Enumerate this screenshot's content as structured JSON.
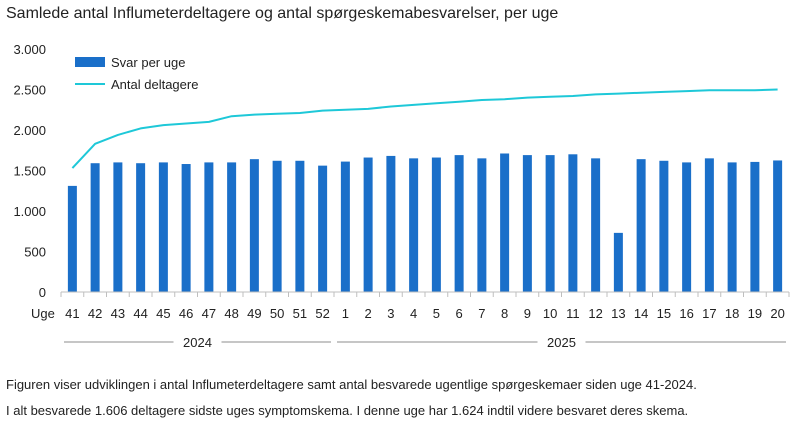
{
  "chart_data": {
    "type": "bar+line",
    "title": "Samlede antal Influmeterdeltagere og antal spørgeskemabesvarelser, per uge",
    "x_axis_label": "Uge",
    "categories": [
      "41",
      "42",
      "43",
      "44",
      "45",
      "46",
      "47",
      "48",
      "49",
      "50",
      "51",
      "52",
      "1",
      "2",
      "3",
      "4",
      "5",
      "6",
      "7",
      "8",
      "9",
      "10",
      "11",
      "12",
      "13",
      "14",
      "15",
      "16",
      "17",
      "18",
      "19",
      "20"
    ],
    "year_groups": [
      {
        "label": "2024",
        "from": 0,
        "to": 11
      },
      {
        "label": "2025",
        "from": 12,
        "to": 31
      }
    ],
    "ylim": [
      0,
      3000
    ],
    "yticks": [
      0,
      500,
      1000,
      1500,
      2000,
      2500,
      3000
    ],
    "ytick_labels": [
      "0",
      "500",
      "1.000",
      "1.500",
      "2.000",
      "2.500",
      "3.000"
    ],
    "gridlines": false,
    "legend_position": "top-left",
    "series": [
      {
        "name": "Svar per uge",
        "type": "bar",
        "color": "#1a6fc9",
        "values": [
          1310,
          1590,
          1600,
          1590,
          1600,
          1580,
          1600,
          1600,
          1640,
          1620,
          1620,
          1560,
          1610,
          1660,
          1680,
          1650,
          1660,
          1690,
          1650,
          1710,
          1690,
          1690,
          1700,
          1650,
          730,
          1640,
          1620,
          1600,
          1650,
          1600,
          1606,
          1624
        ]
      },
      {
        "name": "Antal deltagere",
        "type": "line",
        "color": "#1ec8d8",
        "values": [
          1530,
          1830,
          1940,
          2020,
          2060,
          2080,
          2100,
          2170,
          2190,
          2200,
          2210,
          2240,
          2250,
          2260,
          2290,
          2310,
          2330,
          2350,
          2370,
          2380,
          2400,
          2410,
          2420,
          2440,
          2450,
          2460,
          2470,
          2480,
          2490,
          2490,
          2490,
          2500
        ]
      }
    ]
  },
  "captions": [
    "Figuren viser udviklingen i antal Influmeterdeltagere  samt antal besvarede ugentlige spørgeskemaer siden uge 41-2024.",
    "I alt besvarede 1.606 deltagere sidste uges symptomskema. I denne uge har 1.624 indtil videre besvaret deres skema."
  ]
}
